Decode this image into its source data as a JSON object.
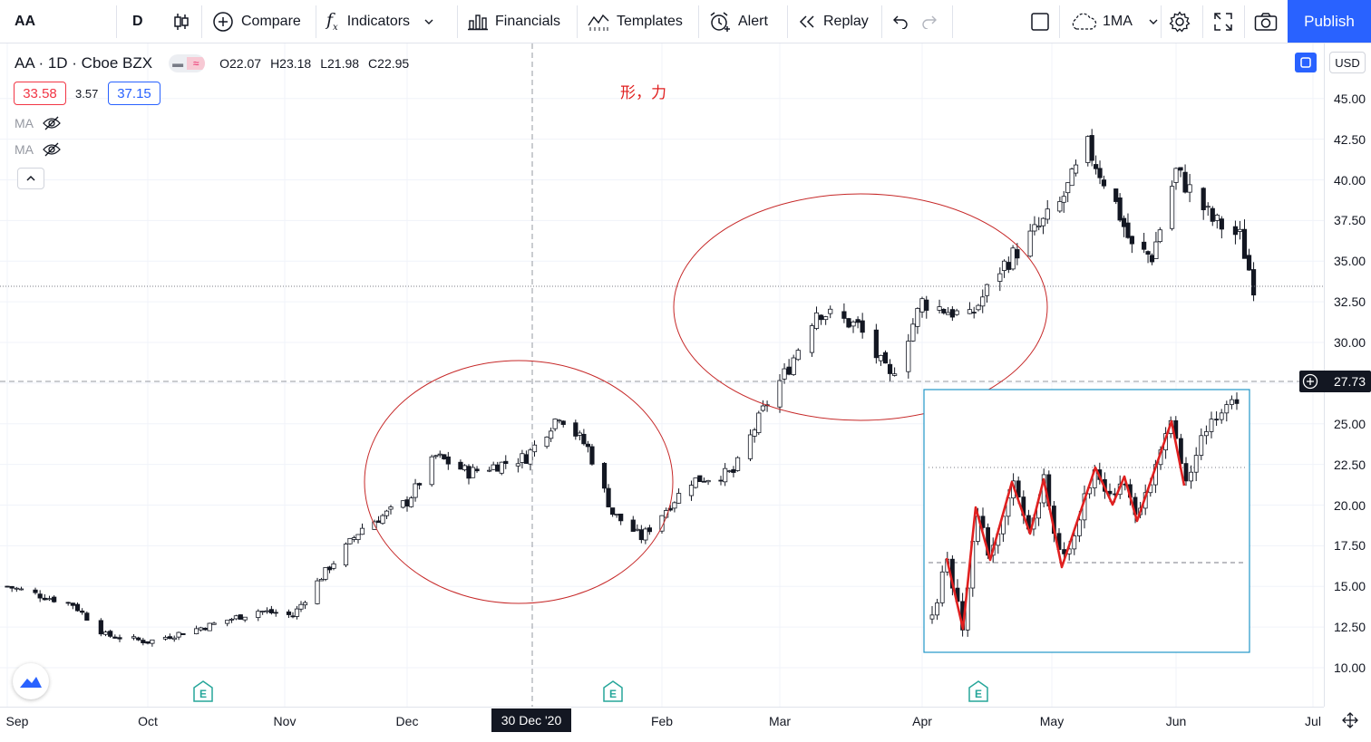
{
  "toolbar": {
    "symbol": "AA",
    "interval": "D",
    "compare": "Compare",
    "indicators": "Indicators",
    "financials": "Financials",
    "templates": "Templates",
    "alert": "Alert",
    "replay": "Replay",
    "layout": "1MA",
    "publish": "Publish"
  },
  "legend": {
    "title": "AA · 1D · Cboe BZX",
    "open": "O22.07",
    "high": "H23.18",
    "low": "L21.98",
    "close": "C22.95",
    "bid": "33.58",
    "spread": "3.57",
    "ask": "37.15",
    "ma1": "MA",
    "ma2": "MA"
  },
  "annotation": "形，力",
  "currency": "USD",
  "crosshair": {
    "price_label": "27.73",
    "date_label": "30 Dec '20"
  },
  "colors": {
    "up": "#ffffff",
    "down": "#131722",
    "ellipse": "#c62828",
    "zigzag": "#e02020",
    "box": "#2196c7",
    "accent": "#2962ff"
  },
  "chart_data": {
    "type": "candlestick",
    "symbol": "AA",
    "interval": "1D",
    "exchange": "Cboe BZX",
    "x_ticks": [
      "Sep",
      "Oct",
      "Nov",
      "Dec",
      "Feb",
      "Mar",
      "Apr",
      "May",
      "Jun",
      "Jul"
    ],
    "y_ticks": [
      10.0,
      12.5,
      15.0,
      17.5,
      20.0,
      22.5,
      25.0,
      27.5,
      30.0,
      32.5,
      35.0,
      37.5,
      40.0,
      42.5,
      45.0
    ],
    "ylim": [
      9,
      46.5
    ],
    "last_price": 33.5,
    "crosshair_price": 27.73,
    "close_trend": [
      [
        "2020-09-01",
        15.0
      ],
      [
        "2020-09-15",
        13.9
      ],
      [
        "2020-09-22",
        12.0
      ],
      [
        "2020-10-01",
        11.6
      ],
      [
        "2020-10-15",
        12.6
      ],
      [
        "2020-10-26",
        13.5
      ],
      [
        "2020-11-03",
        13.2
      ],
      [
        "2020-11-10",
        15.6
      ],
      [
        "2020-11-20",
        18.6
      ],
      [
        "2020-12-01",
        20.2
      ],
      [
        "2020-12-08",
        23.0
      ],
      [
        "2020-12-16",
        22.0
      ],
      [
        "2020-12-30",
        22.95
      ],
      [
        "2021-01-07",
        25.6
      ],
      [
        "2021-01-14",
        23.5
      ],
      [
        "2021-01-20",
        19.5
      ],
      [
        "2021-01-27",
        18.0
      ],
      [
        "2021-02-08",
        21.5
      ],
      [
        "2021-02-18",
        22.0
      ],
      [
        "2021-02-25",
        25.8
      ],
      [
        "2021-03-03",
        28.5
      ],
      [
        "2021-03-09",
        32.0
      ],
      [
        "2021-03-18",
        31.0
      ],
      [
        "2021-03-25",
        27.8
      ],
      [
        "2021-04-01",
        32.5
      ],
      [
        "2021-04-12",
        31.5
      ],
      [
        "2021-04-19",
        34.5
      ],
      [
        "2021-04-26",
        36.5
      ],
      [
        "2021-05-03",
        38.5
      ],
      [
        "2021-05-10",
        42.0
      ],
      [
        "2021-05-17",
        38.5
      ],
      [
        "2021-05-21",
        35.8
      ],
      [
        "2021-05-26",
        35.3
      ],
      [
        "2021-06-01",
        40.5
      ],
      [
        "2021-06-09",
        37.5
      ],
      [
        "2021-06-15",
        36.5
      ],
      [
        "2021-06-18",
        33.5
      ]
    ]
  }
}
